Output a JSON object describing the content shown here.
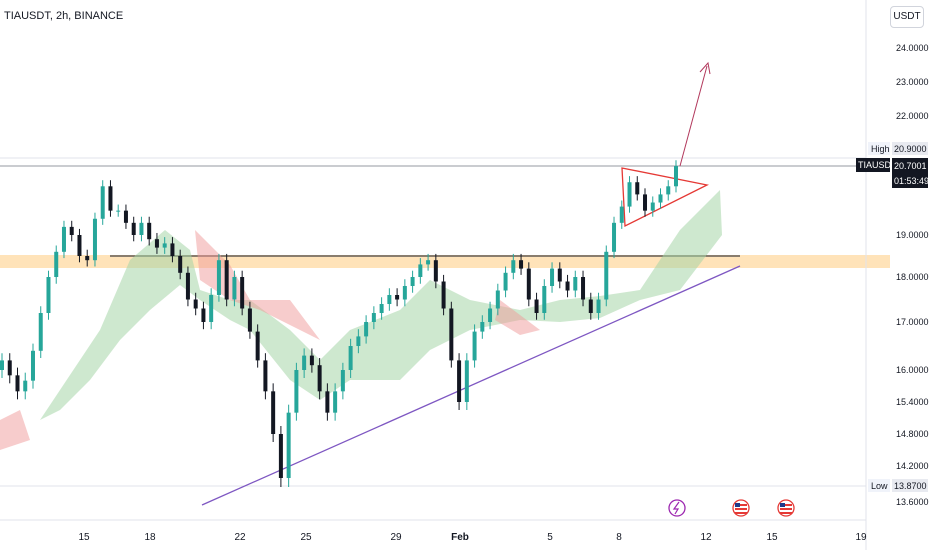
{
  "header": {
    "title": "TIAUSDT, 2h, BINANCE",
    "currency": "USDT"
  },
  "colors": {
    "up": "#26a69a",
    "down": "#131722",
    "zone": "#ffcc80",
    "trendline": "#7e57c2",
    "triangle": "#e53935",
    "arrow": "#b2385c",
    "cloud_green": "#a5d6a7",
    "cloud_red": "#ef9a9a"
  },
  "chart_data": {
    "type": "candlestick",
    "symbol": "TIAUSDT",
    "interval": "2h",
    "exchange": "BINANCE",
    "y_ticks": [
      "24.0000",
      "23.0000",
      "22.0000",
      "19.0000",
      "18.0000",
      "17.0000",
      "16.0000",
      "15.4000",
      "14.8000",
      "14.2000",
      "13.6000"
    ],
    "x_ticks": [
      "15",
      "18",
      "22",
      "25",
      "29",
      "Feb",
      "5",
      "8",
      "12",
      "15",
      "19"
    ],
    "high_label": "High",
    "high_value": "20.9000",
    "low_label": "Low",
    "low_value": "13.8700",
    "last_symbol": "TIAUSDT",
    "last_price": "20.7001",
    "countdown": "01:53:49",
    "closes": [
      16.2,
      15.9,
      15.6,
      15.8,
      16.4,
      17.2,
      18.0,
      18.6,
      19.2,
      19.0,
      18.5,
      18.4,
      19.4,
      20.2,
      19.6,
      19.6,
      19.3,
      19.0,
      19.3,
      18.9,
      18.7,
      18.8,
      18.5,
      18.1,
      17.5,
      17.3,
      17.0,
      17.6,
      18.4,
      17.5,
      18.0,
      17.3,
      16.8,
      16.2,
      15.6,
      14.8,
      14.0,
      15.2,
      16.0,
      16.3,
      16.1,
      15.6,
      15.2,
      15.6,
      16.0,
      16.5,
      16.7,
      17.0,
      17.2,
      17.4,
      17.6,
      17.5,
      17.8,
      18.0,
      18.3,
      18.4,
      17.9,
      17.3,
      16.2,
      15.4,
      16.2,
      16.8,
      17.0,
      17.3,
      17.7,
      18.1,
      18.4,
      18.2,
      17.5,
      17.2,
      17.8,
      18.2,
      17.9,
      17.7,
      18.0,
      17.5,
      17.2,
      17.5,
      18.6,
      19.3,
      19.7,
      20.3,
      20.0,
      19.6,
      19.8,
      20.0,
      20.2,
      20.7
    ]
  }
}
